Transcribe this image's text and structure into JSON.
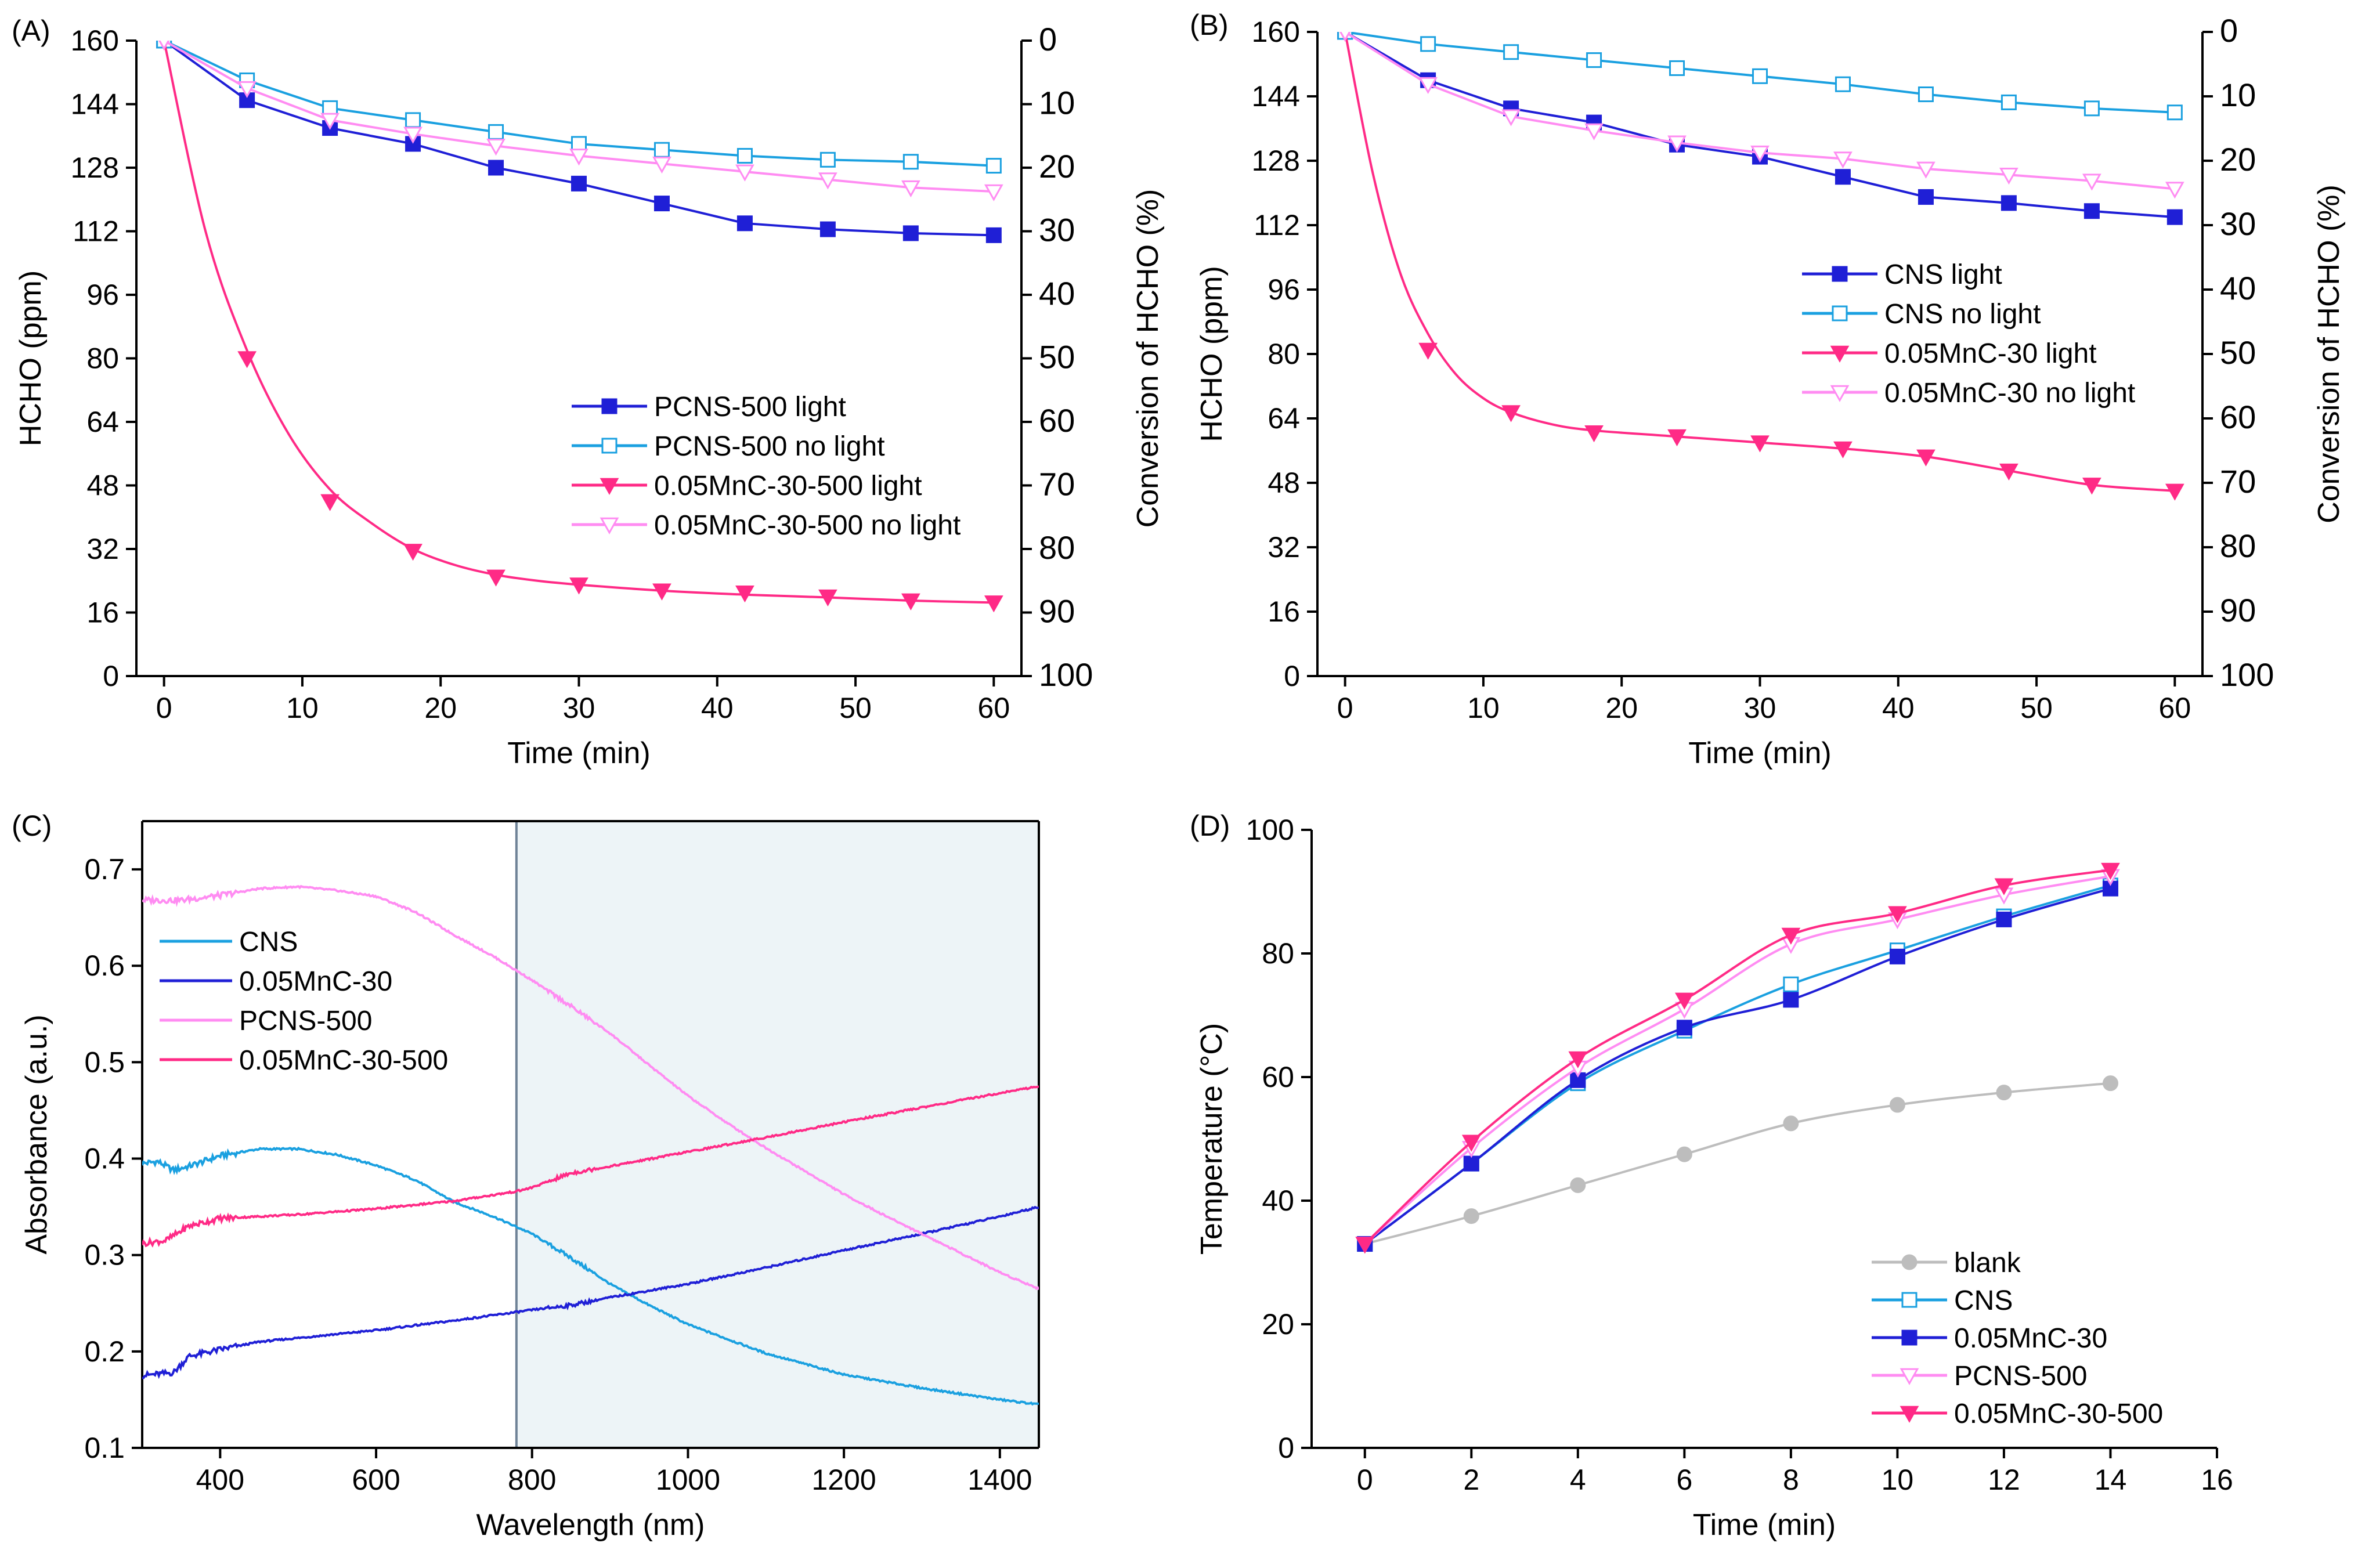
{
  "colors": {
    "dark_blue": "#1f1fd6",
    "light_blue": "#1aa0e0",
    "pink": "#ff2a86",
    "light_pink": "#ff8cf2",
    "gray": "#bdbdbd",
    "nir_shade": "#edf4f7"
  },
  "chart_data": [
    {
      "panel_label": "(A)",
      "type": "line",
      "title": "",
      "xlabel": "Time (min)",
      "ylabel": "HCHO (ppm)",
      "y2label": "Conversion of HCHO (%)",
      "xlim": [
        -2,
        62
      ],
      "ylim": [
        0,
        160
      ],
      "y2lim": [
        100,
        0
      ],
      "xticks": [
        0,
        10,
        20,
        30,
        40,
        50,
        60
      ],
      "yticks": [
        0,
        16,
        32,
        48,
        64,
        80,
        96,
        112,
        128,
        144,
        160
      ],
      "y2ticks": [
        0,
        10,
        20,
        30,
        40,
        50,
        60,
        70,
        80,
        90,
        100
      ],
      "legend_position": "center-right",
      "series": [
        {
          "name": "PCNS-500 light",
          "color_key": "dark_blue",
          "marker": "square-filled",
          "smooth": false,
          "x": [
            0,
            6,
            12,
            18,
            24,
            30,
            36,
            42,
            48,
            54,
            60
          ],
          "values": [
            160,
            145,
            138,
            134,
            128,
            124,
            119,
            114,
            112.5,
            111.5,
            111
          ]
        },
        {
          "name": "PCNS-500 no light",
          "color_key": "light_blue",
          "marker": "square-open",
          "smooth": false,
          "x": [
            0,
            6,
            12,
            18,
            24,
            30,
            36,
            42,
            48,
            54,
            60
          ],
          "values": [
            160,
            150,
            143,
            140,
            137,
            134,
            132.5,
            131,
            130,
            129.5,
            128.5
          ]
        },
        {
          "name": "0.05MnC-30-500 light",
          "color_key": "pink",
          "marker": "triangle-down-filled",
          "smooth": true,
          "x": [
            0,
            6,
            12,
            18,
            24,
            30,
            36,
            42,
            48,
            54,
            60
          ],
          "values": [
            160,
            80,
            44,
            31.5,
            25,
            23,
            21.5,
            21,
            20,
            19,
            18.5
          ],
          "fit": [
            [
              0,
              160
            ],
            [
              3,
              112
            ],
            [
              6,
              82
            ],
            [
              9,
              61
            ],
            [
              12,
              47
            ],
            [
              15,
              38.5
            ],
            [
              18,
              32
            ],
            [
              21,
              28
            ],
            [
              24,
              25.5
            ],
            [
              27,
              24
            ],
            [
              30,
              23
            ],
            [
              36,
              21.5
            ],
            [
              42,
              20.5
            ],
            [
              48,
              19.8
            ],
            [
              54,
              19
            ],
            [
              60,
              18.5
            ]
          ]
        },
        {
          "name": "0.05MnC-30-500 no light",
          "color_key": "light_pink",
          "marker": "triangle-down-open",
          "smooth": false,
          "x": [
            0,
            6,
            12,
            18,
            24,
            30,
            36,
            42,
            48,
            54,
            60
          ],
          "values": [
            160,
            148,
            140,
            136.5,
            133.5,
            131,
            129,
            127,
            125,
            123,
            122
          ]
        }
      ]
    },
    {
      "panel_label": "(B)",
      "type": "line",
      "title": "",
      "xlabel": "Time (min)",
      "ylabel": "HCHO (ppm)",
      "y2label": "Conversion of HCHO (%)",
      "xlim": [
        -2,
        62
      ],
      "ylim": [
        0,
        160
      ],
      "y2lim": [
        100,
        0
      ],
      "xticks": [
        0,
        10,
        20,
        30,
        40,
        50,
        60
      ],
      "yticks": [
        0,
        16,
        32,
        48,
        64,
        80,
        96,
        112,
        128,
        144,
        160
      ],
      "y2ticks": [
        0,
        10,
        20,
        30,
        40,
        50,
        60,
        70,
        80,
        90,
        100
      ],
      "legend_position": "center-right",
      "series": [
        {
          "name": "CNS light",
          "color_key": "dark_blue",
          "marker": "square-filled",
          "smooth": false,
          "x": [
            0,
            6,
            12,
            18,
            24,
            30,
            36,
            42,
            48,
            54,
            60
          ],
          "values": [
            160,
            148,
            141,
            137.5,
            132,
            129,
            124,
            119,
            117.5,
            115.5,
            114
          ]
        },
        {
          "name": "CNS no light",
          "color_key": "light_blue",
          "marker": "square-open",
          "smooth": false,
          "x": [
            0,
            6,
            12,
            18,
            24,
            30,
            36,
            42,
            48,
            54,
            60
          ],
          "values": [
            160,
            157,
            155,
            153,
            151,
            149,
            147,
            144.5,
            142.5,
            141,
            140
          ]
        },
        {
          "name": "0.05MnC-30 light",
          "color_key": "pink",
          "marker": "triangle-down-filled",
          "smooth": true,
          "x": [
            0,
            6,
            12,
            18,
            24,
            30,
            36,
            42,
            48,
            54,
            60
          ],
          "values": [
            160,
            81,
            65.5,
            60.5,
            59.5,
            58,
            56.5,
            54.5,
            51,
            47.5,
            46
          ],
          "fit": [
            [
              0,
              160
            ],
            [
              2,
              125
            ],
            [
              4,
              100
            ],
            [
              6,
              85
            ],
            [
              8,
              75
            ],
            [
              10,
              69
            ],
            [
              12,
              65.5
            ],
            [
              15,
              62.5
            ],
            [
              18,
              61
            ],
            [
              24,
              59.5
            ],
            [
              30,
              58
            ],
            [
              36,
              56.5
            ],
            [
              42,
              54.5
            ],
            [
              48,
              51
            ],
            [
              54,
              47.5
            ],
            [
              60,
              46
            ]
          ]
        },
        {
          "name": "0.05MnC-30 no light",
          "color_key": "light_pink",
          "marker": "triangle-down-open",
          "smooth": false,
          "x": [
            0,
            6,
            12,
            18,
            24,
            30,
            36,
            42,
            48,
            54,
            60
          ],
          "values": [
            160,
            147,
            139,
            135.5,
            132.5,
            130,
            128.5,
            126,
            124.5,
            123,
            121
          ]
        }
      ]
    },
    {
      "panel_label": "(C)",
      "type": "line",
      "title": "",
      "xlabel": "Wavelength (nm)",
      "ylabel": "Absorbance (a.u.)",
      "xlim": [
        300,
        1450
      ],
      "ylim": [
        0.1,
        0.75
      ],
      "xticks": [
        400,
        600,
        800,
        1000,
        1200,
        1400
      ],
      "yticks": [
        0.1,
        0.2,
        0.3,
        0.4,
        0.5,
        0.6,
        0.7
      ],
      "shaded_region": [
        780,
        1450
      ],
      "legend_position": "top-left",
      "series": [
        {
          "name": "CNS",
          "color_key": "light_blue",
          "marker": "none",
          "noise": true,
          "x": [
            300,
            320,
            340,
            360,
            400,
            450,
            500,
            550,
            600,
            650,
            700,
            750,
            800,
            850,
            900,
            950,
            1000,
            1100,
            1200,
            1300,
            1400,
            1450
          ],
          "values": [
            0.395,
            0.397,
            0.388,
            0.392,
            0.403,
            0.41,
            0.41,
            0.404,
            0.393,
            0.378,
            0.355,
            0.34,
            0.322,
            0.297,
            0.27,
            0.248,
            0.228,
            0.198,
            0.176,
            0.162,
            0.15,
            0.145
          ]
        },
        {
          "name": "0.05MnC-30",
          "color_key": "dark_blue",
          "marker": "none",
          "noise": true,
          "x": [
            300,
            340,
            360,
            400,
            450,
            500,
            600,
            700,
            800,
            850,
            900,
            1000,
            1100,
            1200,
            1300,
            1400,
            1450
          ],
          "values": [
            0.175,
            0.178,
            0.195,
            0.202,
            0.21,
            0.214,
            0.222,
            0.232,
            0.243,
            0.248,
            0.256,
            0.27,
            0.287,
            0.305,
            0.322,
            0.34,
            0.35
          ]
        },
        {
          "name": "PCNS-500",
          "color_key": "light_pink",
          "marker": "none",
          "noise": true,
          "x": [
            300,
            350,
            400,
            450,
            500,
            550,
            600,
            650,
            700,
            750,
            800,
            850,
            900,
            950,
            1000,
            1050,
            1100,
            1150,
            1200,
            1250,
            1300,
            1350,
            1400,
            1450
          ],
          "values": [
            0.668,
            0.668,
            0.673,
            0.68,
            0.682,
            0.678,
            0.672,
            0.656,
            0.632,
            0.61,
            0.585,
            0.558,
            0.53,
            0.497,
            0.465,
            0.437,
            0.411,
            0.387,
            0.363,
            0.342,
            0.322,
            0.302,
            0.282,
            0.265
          ]
        },
        {
          "name": "0.05MnC-30-500",
          "color_key": "pink",
          "marker": "none",
          "noise": true,
          "x": [
            300,
            330,
            360,
            400,
            450,
            500,
            600,
            700,
            780,
            800,
            850,
            900,
            1000,
            1100,
            1200,
            1300,
            1400,
            1450
          ],
          "values": [
            0.312,
            0.315,
            0.33,
            0.338,
            0.34,
            0.342,
            0.348,
            0.356,
            0.366,
            0.37,
            0.385,
            0.392,
            0.407,
            0.422,
            0.438,
            0.453,
            0.468,
            0.475
          ]
        }
      ]
    },
    {
      "panel_label": "(D)",
      "type": "line",
      "title": "",
      "xlabel": "Time (min)",
      "ylabel": "Temperature (°C)",
      "xlim": [
        -1,
        16
      ],
      "ylim": [
        0,
        100
      ],
      "xticks": [
        0,
        2,
        4,
        6,
        8,
        10,
        12,
        14,
        16
      ],
      "yticks": [
        0,
        20,
        40,
        60,
        80,
        100
      ],
      "legend_position": "bottom-right",
      "series": [
        {
          "name": "blank",
          "color_key": "gray",
          "marker": "circle-filled",
          "x": [
            0,
            2,
            4,
            6,
            8,
            10,
            12,
            14
          ],
          "values": [
            33,
            37.5,
            42.5,
            47.5,
            52.5,
            55.5,
            57.5,
            59
          ]
        },
        {
          "name": "CNS",
          "color_key": "light_blue",
          "marker": "square-open",
          "x": [
            0,
            2,
            4,
            6,
            8,
            10,
            12,
            14
          ],
          "values": [
            33,
            46,
            59,
            67.5,
            75,
            80.5,
            86,
            91
          ]
        },
        {
          "name": "0.05MnC-30",
          "color_key": "dark_blue",
          "marker": "square-filled",
          "x": [
            0,
            2,
            4,
            6,
            8,
            10,
            12,
            14
          ],
          "values": [
            33,
            46,
            59.5,
            68,
            72.5,
            79.5,
            85.5,
            90.5
          ]
        },
        {
          "name": "PCNS-500",
          "color_key": "light_pink",
          "marker": "triangle-down-open",
          "x": [
            0,
            2,
            4,
            6,
            8,
            10,
            12,
            14
          ],
          "values": [
            33,
            48.5,
            61.5,
            71,
            81.5,
            85.5,
            89.5,
            92.5
          ]
        },
        {
          "name": "0.05MnC-30-500",
          "color_key": "pink",
          "marker": "triangle-down-filled",
          "x": [
            0,
            2,
            4,
            6,
            8,
            10,
            12,
            14
          ],
          "values": [
            33,
            49.5,
            63,
            72.5,
            83,
            86.5,
            91,
            93.5
          ]
        }
      ]
    }
  ]
}
